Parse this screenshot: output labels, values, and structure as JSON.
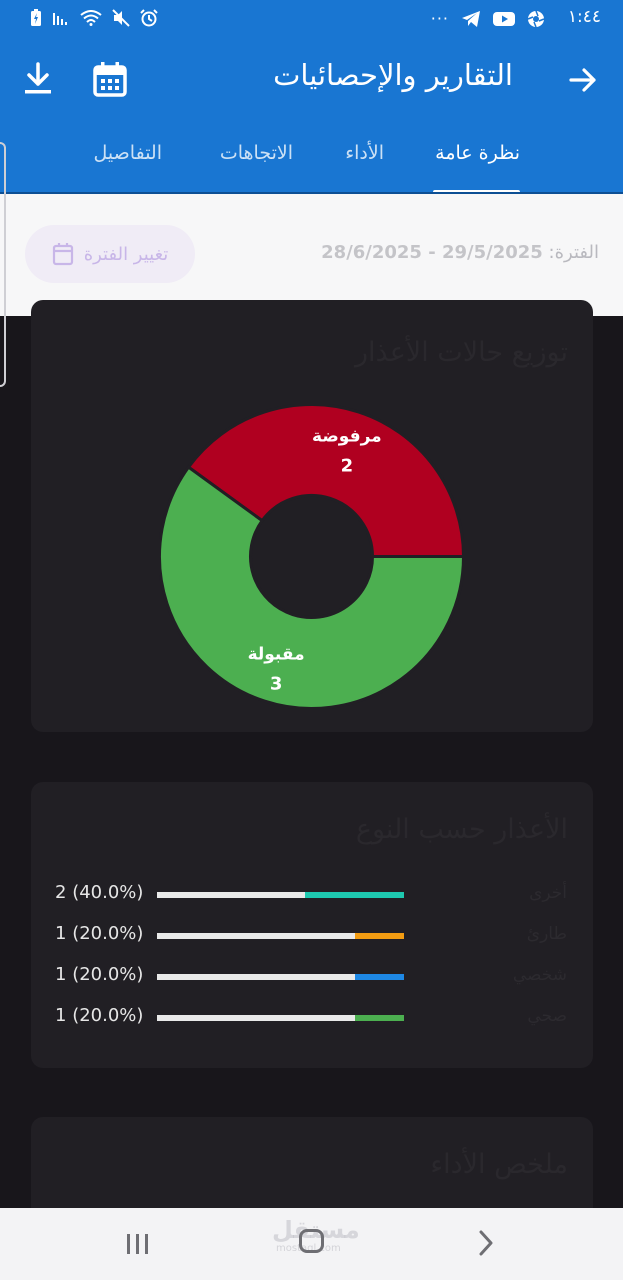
{
  "status_bar": {
    "time": "١:٤٤",
    "more": "···"
  },
  "app_bar": {
    "title": "التقارير والإحصائيات",
    "tabs": [
      {
        "label": "نظرة عامة",
        "active": true
      },
      {
        "label": "الأداء",
        "active": false
      },
      {
        "label": "الاتجاهات",
        "active": false
      },
      {
        "label": "التفاصيل",
        "active": false
      }
    ]
  },
  "period": {
    "label": "الفترة:",
    "dates": "29/5/2025 - 28/6/2025",
    "change_button": "تغيير الفترة"
  },
  "status_card": {
    "title": "توزيع حالات الأعذار"
  },
  "chart_data": {
    "type": "pie",
    "donut": true,
    "categories": [
      "مرفوضة",
      "مقبولة"
    ],
    "values": [
      2,
      3
    ],
    "colors": [
      "#b00020",
      "#4caf50"
    ]
  },
  "type_card": {
    "title": "الأعذار حسب النوع",
    "rows": [
      {
        "type": "أخرى",
        "count": "2",
        "percent": "(40.0%)",
        "fraction": 0.4,
        "color": "#1ec9b0"
      },
      {
        "type": "طارئ",
        "count": "1",
        "percent": "(20.0%)",
        "fraction": 0.2,
        "color": "#f39c12"
      },
      {
        "type": "شخصي",
        "count": "1",
        "percent": "(20.0%)",
        "fraction": 0.2,
        "color": "#1e88e5"
      },
      {
        "type": "صحي",
        "count": "1",
        "percent": "(20.0%)",
        "fraction": 0.2,
        "color": "#4caf50"
      }
    ]
  },
  "performance_card": {
    "title": "ملخص الأداء"
  },
  "watermark": {
    "brand": "مستقل",
    "domain": "mostaql.com"
  }
}
